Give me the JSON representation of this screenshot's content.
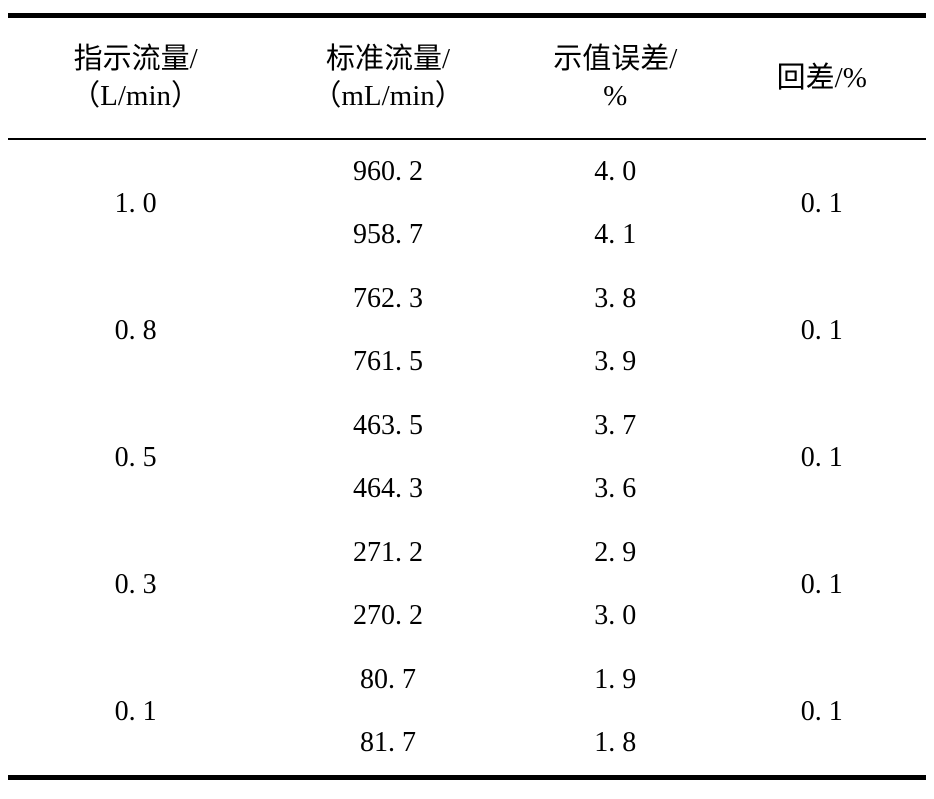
{
  "table": {
    "headers": [
      {
        "line1": "指示流量/",
        "line2": "（L/min）"
      },
      {
        "line1": "标准流量/",
        "line2": "（mL/min）"
      },
      {
        "line1": "示值误差/",
        "line2": "%"
      },
      {
        "line1": "回差/%"
      }
    ],
    "rows": [
      {
        "indicated": "1. 0",
        "standard": [
          "960. 2",
          "958. 7"
        ],
        "error": [
          "4. 0",
          "4. 1"
        ],
        "hysteresis": "0. 1"
      },
      {
        "indicated": "0. 8",
        "standard": [
          "762. 3",
          "761. 5"
        ],
        "error": [
          "3. 8",
          "3. 9"
        ],
        "hysteresis": "0. 1"
      },
      {
        "indicated": "0. 5",
        "standard": [
          "463. 5",
          "464. 3"
        ],
        "error": [
          "3. 7",
          "3. 6"
        ],
        "hysteresis": "0. 1"
      },
      {
        "indicated": "0. 3",
        "standard": [
          "271. 2",
          "270. 2"
        ],
        "error": [
          "2. 9",
          "3. 0"
        ],
        "hysteresis": "0. 1"
      },
      {
        "indicated": "0. 1",
        "standard": [
          "80. 7",
          "81. 7"
        ],
        "error": [
          "1. 9",
          "1. 8"
        ],
        "hysteresis": "0. 1"
      }
    ]
  }
}
